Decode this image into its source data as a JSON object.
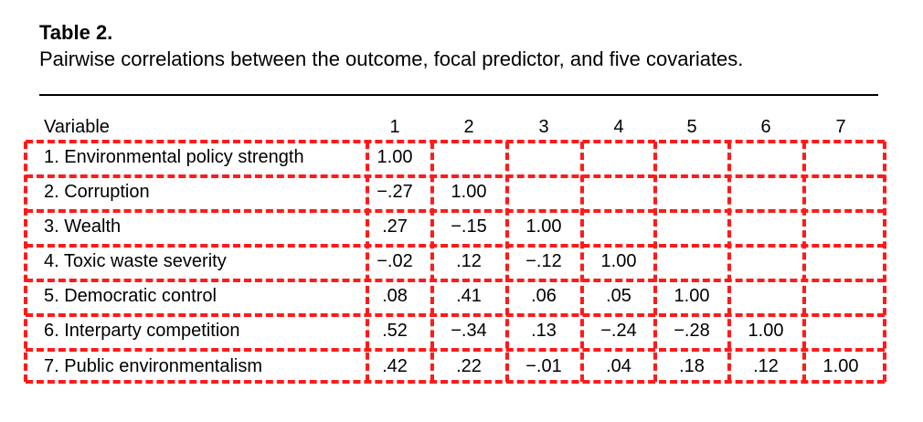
{
  "table": {
    "label": "Table 2.",
    "caption": "Pairwise correlations between the outcome, focal predictor, and five covariates.",
    "header": [
      "Variable",
      "1",
      "2",
      "3",
      "4",
      "5",
      "6",
      "7"
    ],
    "rows": [
      {
        "label": "1. Environmental policy strength",
        "values": [
          "1.00",
          "",
          "",
          "",
          "",
          "",
          ""
        ]
      },
      {
        "label": "2. Corruption",
        "values": [
          "−.27",
          "1.00",
          "",
          "",
          "",
          "",
          ""
        ]
      },
      {
        "label": "3. Wealth",
        "values": [
          ".27",
          "−.15",
          "1.00",
          "",
          "",
          "",
          ""
        ]
      },
      {
        "label": "4. Toxic waste severity",
        "values": [
          "−.02",
          ".12",
          "−.12",
          "1.00",
          "",
          "",
          ""
        ]
      },
      {
        "label": "5. Democratic control",
        "values": [
          ".08",
          ".41",
          ".06",
          ".05",
          "1.00",
          "",
          ""
        ]
      },
      {
        "label": "6. Interparty competition",
        "values": [
          ".52",
          "−.34",
          ".13",
          "−.24",
          "−.28",
          "1.00",
          ""
        ]
      },
      {
        "label": "7. Public environmentalism",
        "values": [
          ".42",
          ".22",
          "−.01",
          ".04",
          ".18",
          ".12",
          "1.00"
        ]
      }
    ]
  },
  "annotation": {
    "color": "#ff1a1a"
  }
}
